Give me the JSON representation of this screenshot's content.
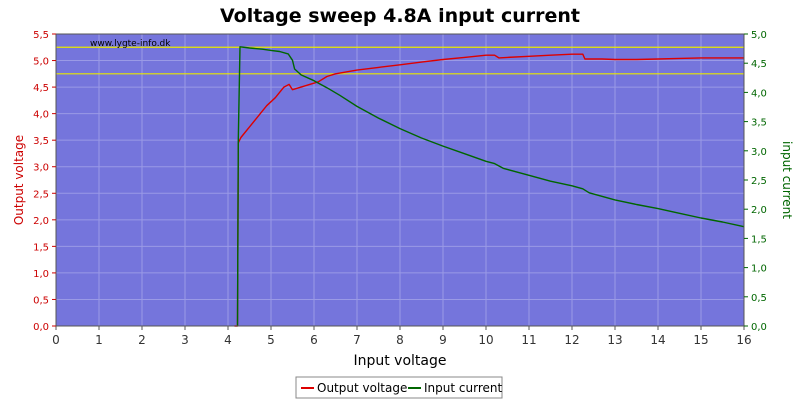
{
  "chart_data": {
    "type": "line",
    "title": "Voltage sweep 4.8A input current",
    "watermark": "www.lygte-info.dk",
    "xlabel": "Input voltage",
    "ylabel_left": "Output voltage",
    "ylabel_right": "input current",
    "xlim": [
      0,
      16
    ],
    "ylim_left": [
      0,
      5.5
    ],
    "ylim_right": [
      0,
      5
    ],
    "x_ticks": [
      "0",
      "1",
      "2",
      "3",
      "4",
      "5",
      "6",
      "7",
      "8",
      "9",
      "10",
      "11",
      "12",
      "13",
      "14",
      "15",
      "16"
    ],
    "y_left_ticks": [
      "0,0",
      "0,5",
      "1,0",
      "1,5",
      "2,0",
      "2,5",
      "3,0",
      "3,5",
      "4,0",
      "4,5",
      "5,0",
      "5,5"
    ],
    "y_right_ticks": [
      "0,0",
      "0,5",
      "1,0",
      "1,5",
      "2,0",
      "2,5",
      "3,0",
      "3,5",
      "4,0",
      "4,5",
      "5,0"
    ],
    "grid": true,
    "background_color": "#7575dc",
    "reference_lines_left_axis": [
      5.25,
      4.75
    ],
    "reference_line_color": "#e8e800",
    "legend_position": "bottom-center",
    "series": [
      {
        "name": "Output voltage",
        "axis": "left",
        "color": "#dd0000",
        "points": [
          [
            4.15,
            0.0
          ],
          [
            4.22,
            0.0
          ],
          [
            4.24,
            3.45
          ],
          [
            4.3,
            3.55
          ],
          [
            4.5,
            3.75
          ],
          [
            4.7,
            3.95
          ],
          [
            4.9,
            4.15
          ],
          [
            5.1,
            4.3
          ],
          [
            5.3,
            4.5
          ],
          [
            5.42,
            4.55
          ],
          [
            5.5,
            4.45
          ],
          [
            5.7,
            4.5
          ],
          [
            5.9,
            4.55
          ],
          [
            6.1,
            4.6
          ],
          [
            6.3,
            4.7
          ],
          [
            6.5,
            4.75
          ],
          [
            7.0,
            4.82
          ],
          [
            7.5,
            4.87
          ],
          [
            8.0,
            4.92
          ],
          [
            8.5,
            4.97
          ],
          [
            9.0,
            5.02
          ],
          [
            9.5,
            5.06
          ],
          [
            10.0,
            5.1
          ],
          [
            10.2,
            5.1
          ],
          [
            10.3,
            5.05
          ],
          [
            10.5,
            5.06
          ],
          [
            11.0,
            5.08
          ],
          [
            11.5,
            5.1
          ],
          [
            12.0,
            5.12
          ],
          [
            12.25,
            5.12
          ],
          [
            12.3,
            5.03
          ],
          [
            12.7,
            5.03
          ],
          [
            13.0,
            5.02
          ],
          [
            13.5,
            5.02
          ],
          [
            14.0,
            5.03
          ],
          [
            14.5,
            5.04
          ],
          [
            15.0,
            5.05
          ],
          [
            15.5,
            5.05
          ],
          [
            16.0,
            5.05
          ]
        ]
      },
      {
        "name": "Input current",
        "axis": "right",
        "color": "#006600",
        "points": [
          [
            4.22,
            0.0
          ],
          [
            4.24,
            3.2
          ],
          [
            4.28,
            4.78
          ],
          [
            4.5,
            4.76
          ],
          [
            4.8,
            4.74
          ],
          [
            5.0,
            4.72
          ],
          [
            5.2,
            4.7
          ],
          [
            5.4,
            4.66
          ],
          [
            5.5,
            4.55
          ],
          [
            5.55,
            4.4
          ],
          [
            5.7,
            4.3
          ],
          [
            6.0,
            4.2
          ],
          [
            6.3,
            4.08
          ],
          [
            6.6,
            3.95
          ],
          [
            7.0,
            3.76
          ],
          [
            7.5,
            3.56
          ],
          [
            8.0,
            3.38
          ],
          [
            8.5,
            3.22
          ],
          [
            9.0,
            3.08
          ],
          [
            9.5,
            2.95
          ],
          [
            10.0,
            2.82
          ],
          [
            10.2,
            2.78
          ],
          [
            10.4,
            2.7
          ],
          [
            11.0,
            2.58
          ],
          [
            11.5,
            2.48
          ],
          [
            12.0,
            2.4
          ],
          [
            12.25,
            2.35
          ],
          [
            12.4,
            2.28
          ],
          [
            13.0,
            2.16
          ],
          [
            13.5,
            2.08
          ],
          [
            14.0,
            2.01
          ],
          [
            14.5,
            1.93
          ],
          [
            15.0,
            1.85
          ],
          [
            15.5,
            1.78
          ],
          [
            16.0,
            1.7
          ]
        ]
      }
    ]
  }
}
